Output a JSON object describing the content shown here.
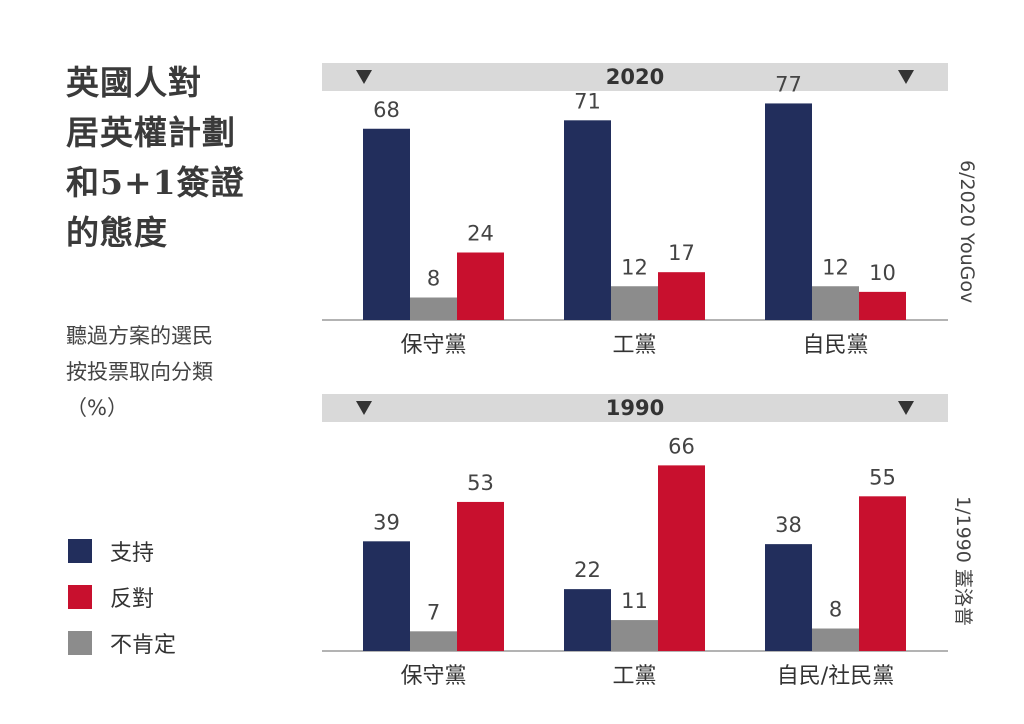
{
  "title_lines": [
    "英國人對",
    "居英權計劃",
    "和5+1簽證",
    "的態度"
  ],
  "subtitle_lines": [
    "聽過方案的選民",
    "按投票取向分類",
    "（%）"
  ],
  "legend": [
    {
      "label": "支持",
      "color": "#222e5c"
    },
    {
      "label": "反對",
      "color": "#c8102e"
    },
    {
      "label": "不肯定",
      "color": "#8c8c8c"
    }
  ],
  "chart_data": [
    {
      "type": "bar",
      "title": "2020",
      "source": "6/2020 YouGov",
      "categories": [
        "保守黨",
        "工黨",
        "自民黨"
      ],
      "series": [
        {
          "name": "支持",
          "color": "#222e5c",
          "values": [
            68,
            71,
            77
          ]
        },
        {
          "name": "不肯定",
          "color": "#8c8c8c",
          "values": [
            8,
            12,
            12
          ]
        },
        {
          "name": "反對",
          "color": "#c8102e",
          "values": [
            24,
            17,
            10
          ]
        }
      ],
      "ylim": [
        0,
        80
      ],
      "grid": false
    },
    {
      "type": "bar",
      "title": "1990",
      "source": "1/1990 蓋洛普",
      "categories": [
        "保守黨",
        "工黨",
        "自民/社民黨"
      ],
      "series": [
        {
          "name": "支持",
          "color": "#222e5c",
          "values": [
            39,
            22,
            38
          ]
        },
        {
          "name": "不肯定",
          "color": "#8c8c8c",
          "values": [
            7,
            11,
            8
          ]
        },
        {
          "name": "反對",
          "color": "#c8102e",
          "values": [
            53,
            66,
            55
          ]
        }
      ],
      "ylim": [
        0,
        80
      ],
      "grid": false
    }
  ]
}
